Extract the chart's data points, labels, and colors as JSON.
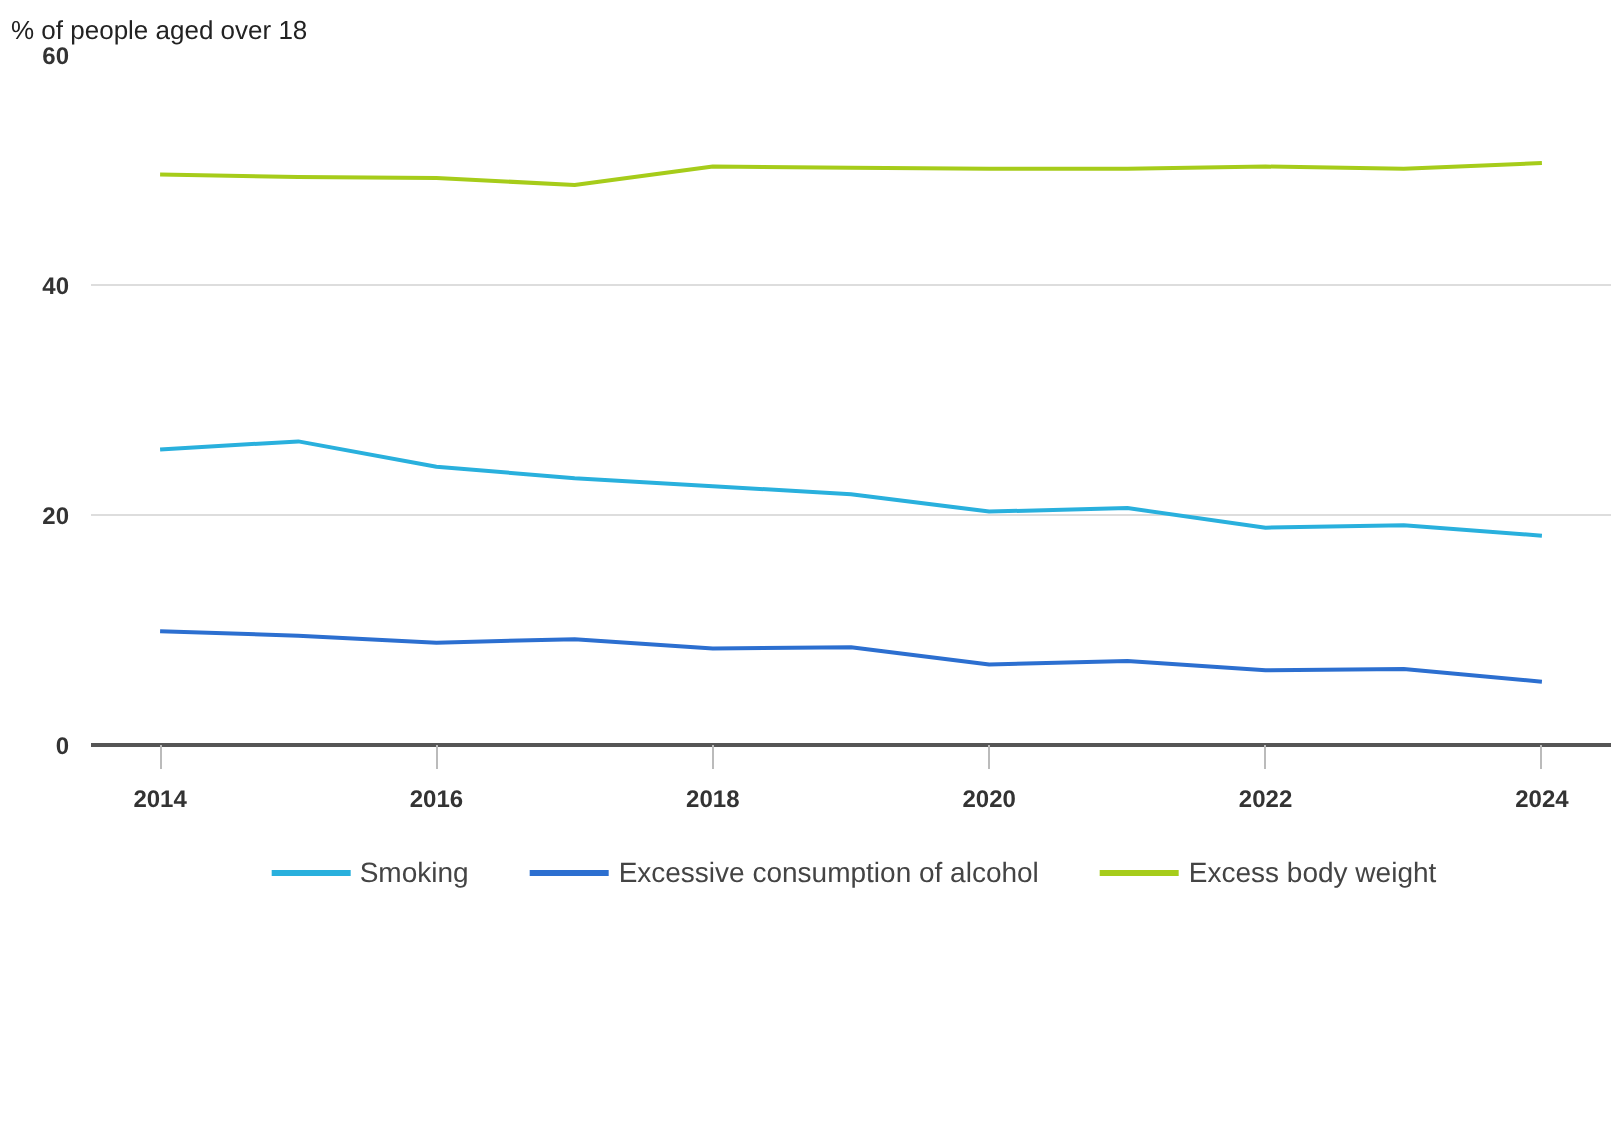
{
  "chart_data": {
    "type": "line",
    "ylabel": "% of people aged over 18",
    "x": [
      2014,
      2015,
      2016,
      2017,
      2018,
      2019,
      2020,
      2021,
      2022,
      2023,
      2024
    ],
    "series": [
      {
        "name": "Smoking",
        "color": "#29b0dd",
        "values": [
          25.7,
          26.4,
          24.2,
          23.2,
          22.5,
          21.8,
          20.3,
          20.6,
          18.9,
          19.1,
          18.2
        ]
      },
      {
        "name": "Excessive consumption of alcohol",
        "color": "#2c6fd0",
        "values": [
          9.9,
          9.5,
          8.9,
          9.2,
          8.4,
          8.5,
          7.0,
          7.3,
          6.5,
          6.6,
          5.5
        ]
      },
      {
        "name": "Excess body weight",
        "color": "#a6cc1a",
        "values": [
          49.6,
          49.4,
          49.3,
          48.7,
          50.3,
          50.2,
          50.1,
          50.1,
          50.3,
          50.1,
          50.6
        ]
      }
    ],
    "xlim": [
      2013.5,
      2024.5
    ],
    "xticks": [
      2014,
      2016,
      2018,
      2020,
      2022,
      2024
    ],
    "ylim": [
      0,
      60
    ],
    "yticks": [
      0,
      20,
      40,
      60
    ],
    "grid": "y",
    "legend": "bottom",
    "marker": "none",
    "line_style": "solid"
  }
}
